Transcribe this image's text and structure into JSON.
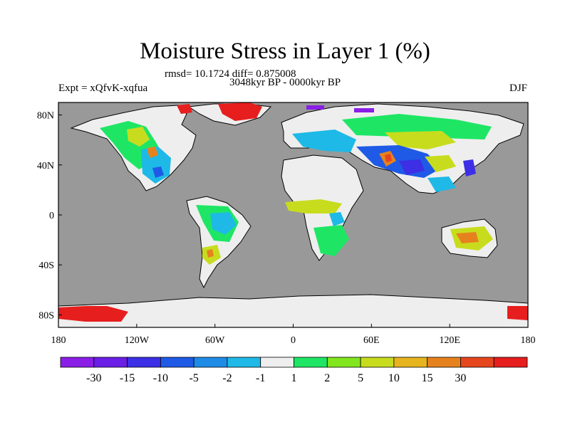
{
  "title": "Moisture Stress in Layer 1 (%)",
  "stats": "rmsd= 10.1724 diff= 0.875008",
  "period": "3048kyr BP - 0000kyr BP",
  "experiment": "Expt = xQfvK-xqfua",
  "season": "DJF",
  "map": {
    "projection": "cylindrical-equidistant",
    "lon_range": [
      -180,
      180
    ],
    "lat_range": [
      -90,
      90
    ],
    "ocean_color": "#999999",
    "neutral_land_color": "#eeeeee",
    "lon_ticks": [
      {
        "value": -180,
        "label": "180"
      },
      {
        "value": -120,
        "label": "120W"
      },
      {
        "value": -60,
        "label": "60W"
      },
      {
        "value": 0,
        "label": "0"
      },
      {
        "value": 60,
        "label": "60E"
      },
      {
        "value": 120,
        "label": "120E"
      },
      {
        "value": 180,
        "label": "180"
      }
    ],
    "lat_ticks": [
      {
        "value": 80,
        "label": "80N"
      },
      {
        "value": 40,
        "label": "40N"
      },
      {
        "value": 0,
        "label": "0"
      },
      {
        "value": -40,
        "label": "40S"
      },
      {
        "value": -80,
        "label": "80S"
      }
    ]
  },
  "colorbar": {
    "colors": [
      "#8a1ee6",
      "#6a1ee6",
      "#3c2fe6",
      "#1e5ae6",
      "#1e8ce6",
      "#1eb9e6",
      "#eeeeee",
      "#1ee664",
      "#82e61e",
      "#c8dc1e",
      "#e6b41e",
      "#e6821e",
      "#e6461e",
      "#e61e1e"
    ],
    "labels": [
      "-30",
      "-15",
      "-10",
      "-5",
      "-2",
      "-1",
      "1",
      "2",
      "5",
      "10",
      "15",
      "30"
    ]
  }
}
